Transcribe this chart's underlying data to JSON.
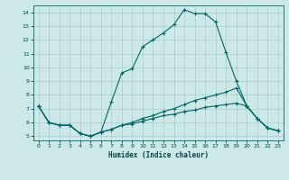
{
  "xlabel": "Humidex (Indice chaleur)",
  "ylabel": "",
  "bg_color": "#cce8e8",
  "line_color": "#006666",
  "grid_color": "#aacccc",
  "xlim": [
    -0.5,
    23.5
  ],
  "ylim": [
    4.7,
    14.5
  ],
  "xticks": [
    0,
    1,
    2,
    3,
    4,
    5,
    6,
    7,
    8,
    9,
    10,
    11,
    12,
    13,
    14,
    15,
    16,
    17,
    18,
    19,
    20,
    21,
    22,
    23
  ],
  "yticks": [
    5,
    6,
    7,
    8,
    9,
    10,
    11,
    12,
    13,
    14
  ],
  "line1": {
    "x": [
      0,
      1,
      2,
      3,
      4,
      5,
      6,
      7,
      8,
      9,
      10,
      11,
      12,
      13,
      14,
      15,
      16,
      17,
      18,
      19,
      20,
      21,
      22,
      23
    ],
    "y": [
      7.2,
      6.0,
      5.8,
      5.8,
      5.2,
      5.0,
      5.3,
      7.5,
      9.6,
      9.9,
      11.5,
      12.0,
      12.5,
      13.1,
      14.2,
      13.9,
      13.9,
      13.3,
      11.1,
      9.0,
      7.2,
      6.3,
      5.6,
      5.4
    ]
  },
  "line2": {
    "x": [
      0,
      1,
      2,
      3,
      4,
      5,
      6,
      7,
      8,
      9,
      10,
      11,
      12,
      13,
      14,
      15,
      16,
      17,
      18,
      19,
      20,
      21,
      22,
      23
    ],
    "y": [
      7.2,
      6.0,
      5.8,
      5.8,
      5.2,
      5.0,
      5.3,
      5.5,
      5.8,
      6.0,
      6.3,
      6.5,
      6.8,
      7.0,
      7.3,
      7.6,
      7.8,
      8.0,
      8.2,
      8.5,
      7.2,
      6.3,
      5.6,
      5.4
    ]
  },
  "line3": {
    "x": [
      0,
      1,
      2,
      3,
      4,
      5,
      6,
      7,
      8,
      9,
      10,
      11,
      12,
      13,
      14,
      15,
      16,
      17,
      18,
      19,
      20,
      21,
      22,
      23
    ],
    "y": [
      7.2,
      6.0,
      5.8,
      5.8,
      5.2,
      5.0,
      5.3,
      5.5,
      5.8,
      5.9,
      6.1,
      6.3,
      6.5,
      6.6,
      6.8,
      6.9,
      7.1,
      7.2,
      7.3,
      7.4,
      7.2,
      6.3,
      5.6,
      5.4
    ]
  }
}
